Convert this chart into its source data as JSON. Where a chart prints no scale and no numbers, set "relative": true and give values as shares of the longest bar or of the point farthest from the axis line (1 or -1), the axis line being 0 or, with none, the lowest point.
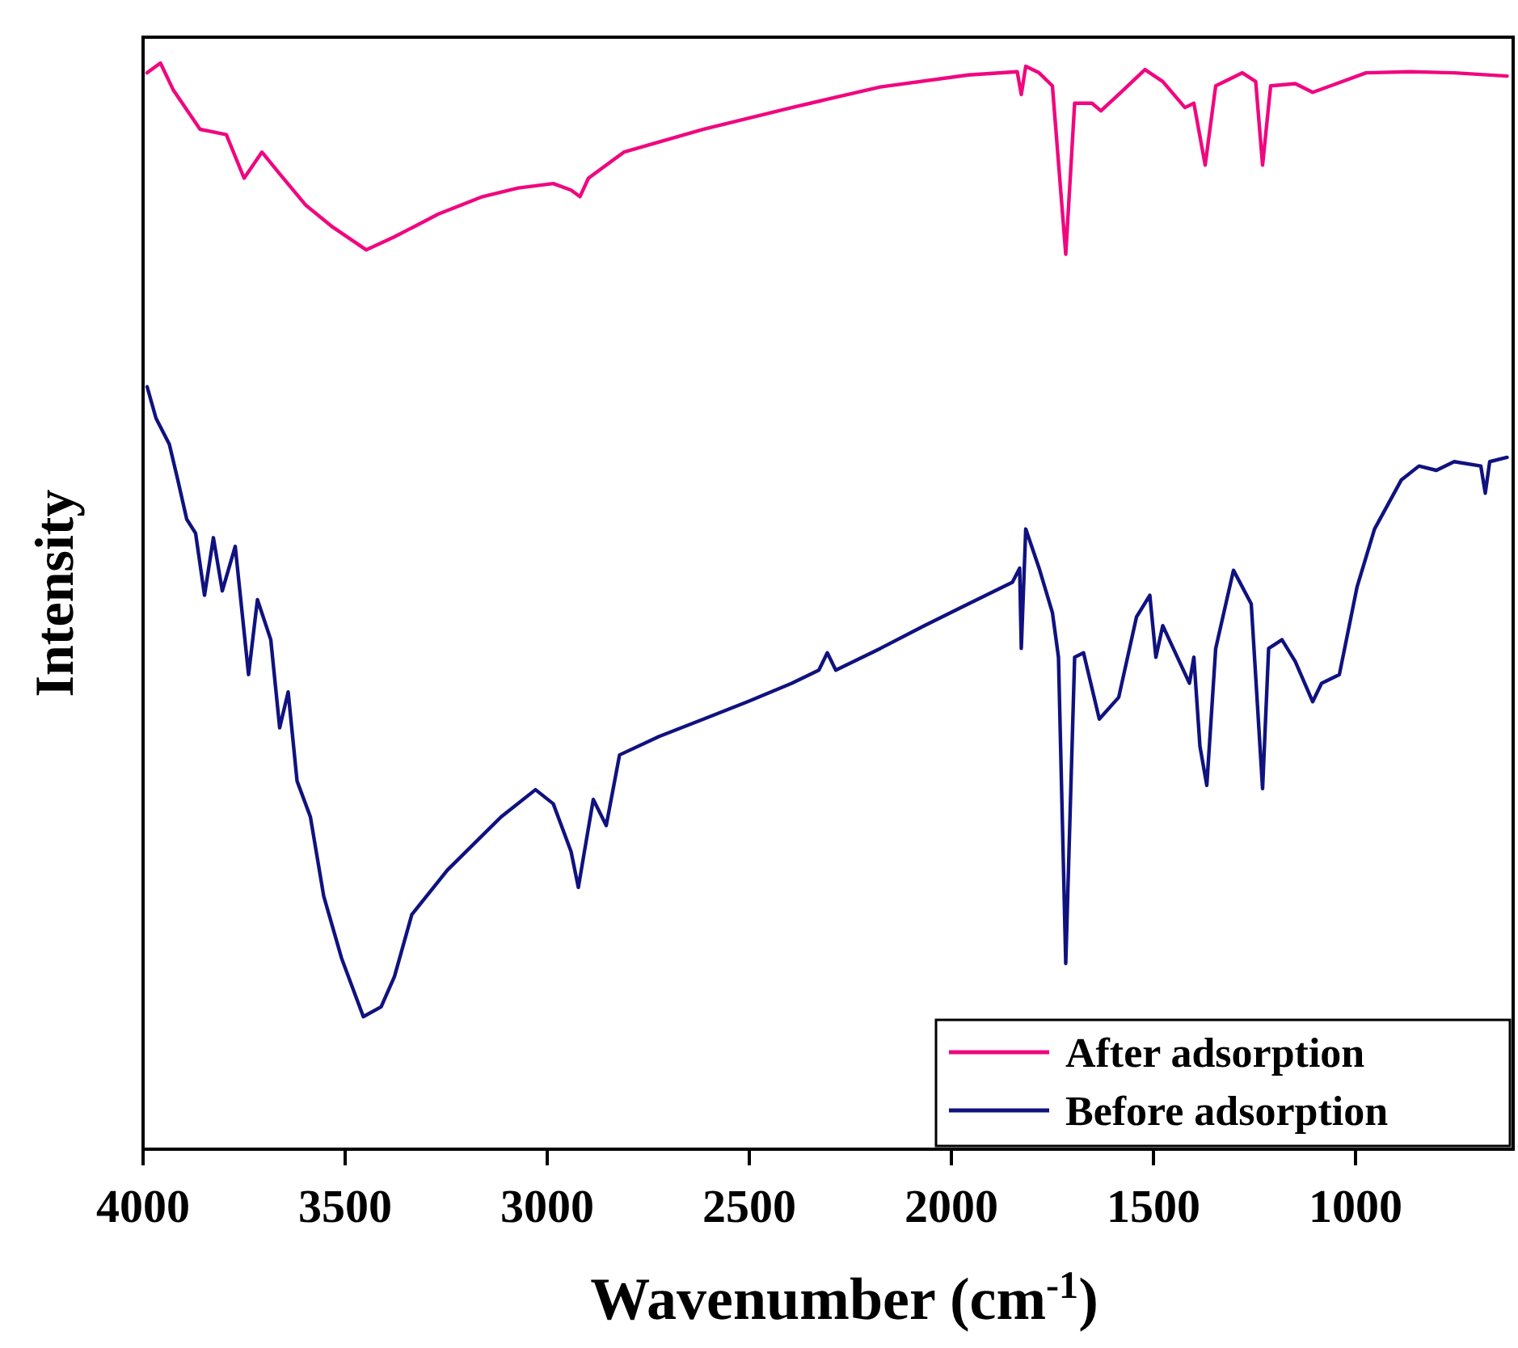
{
  "chart_data": {
    "type": "line",
    "xlabel": "Wavenumber (cm$^{-1}$)",
    "ylabel": "Intensity",
    "relative": true,
    "xlim": [
      4000,
      610
    ],
    "xticks": [
      4000,
      3500,
      3000,
      2500,
      2000,
      1500,
      1000
    ],
    "grid": false,
    "legend": "bottom right",
    "marker": "none",
    "line_style": "solid",
    "series": [
      {
        "name": "After adsorption",
        "color": "#f0077f",
        "x": [
          3990,
          3957,
          3925,
          3859,
          3794,
          3750,
          3706,
          3662,
          3597,
          3531,
          3448,
          3378,
          3269,
          3160,
          3072,
          2985,
          2941,
          2919,
          2898,
          2810,
          2613,
          2395,
          2176,
          1958,
          1837,
          1827,
          1816,
          1783,
          1750,
          1717,
          1695,
          1652,
          1630,
          1586,
          1521,
          1477,
          1422,
          1400,
          1372,
          1346,
          1280,
          1247,
          1230,
          1210,
          1149,
          1106,
          1062,
          974,
          865,
          756,
          625
        ],
        "values": [
          0.991,
          1,
          0.975,
          0.939,
          0.934,
          0.894,
          0.918,
          0.898,
          0.869,
          0.849,
          0.828,
          0.84,
          0.861,
          0.877,
          0.885,
          0.889,
          0.883,
          0.877,
          0.894,
          0.918,
          0.939,
          0.959,
          0.978,
          0.989,
          0.992,
          0.971,
          0.997,
          0.991,
          0.979,
          0.824,
          0.963,
          0.963,
          0.956,
          0.971,
          0.994,
          0.983,
          0.959,
          0.963,
          0.906,
          0.979,
          0.991,
          0.983,
          0.906,
          0.979,
          0.981,
          0.973,
          0.979,
          0.991,
          0.992,
          0.991,
          0.988
        ]
      },
      {
        "name": "Before adsorption",
        "color": "#10127f",
        "x": [
          3990,
          3968,
          3935,
          3914,
          3892,
          3870,
          3848,
          3826,
          3804,
          3772,
          3739,
          3717,
          3684,
          3662,
          3641,
          3619,
          3586,
          3553,
          3509,
          3455,
          3411,
          3378,
          3335,
          3247,
          3114,
          3029,
          2985,
          2941,
          2923,
          2908,
          2886,
          2854,
          2821,
          2723,
          2613,
          2504,
          2395,
          2328,
          2307,
          2286,
          2176,
          2067,
          1958,
          1849,
          1831,
          1827,
          1816,
          1783,
          1750,
          1735,
          1717,
          1695,
          1673,
          1634,
          1586,
          1542,
          1509,
          1494,
          1477,
          1411,
          1400,
          1385,
          1368,
          1346,
          1302,
          1258,
          1230,
          1215,
          1182,
          1149,
          1106,
          1084,
          1040,
          996,
          953,
          887,
          843,
          800,
          756,
          690,
          679,
          668,
          625
        ],
        "values": [
          0.702,
          0.673,
          0.649,
          0.616,
          0.58,
          0.567,
          0.51,
          0.563,
          0.514,
          0.555,
          0.437,
          0.506,
          0.469,
          0.388,
          0.421,
          0.339,
          0.306,
          0.233,
          0.176,
          0.122,
          0.131,
          0.159,
          0.216,
          0.257,
          0.306,
          0.331,
          0.318,
          0.274,
          0.241,
          0.274,
          0.322,
          0.298,
          0.363,
          0.38,
          0.396,
          0.412,
          0.429,
          0.441,
          0.457,
          0.441,
          0.461,
          0.482,
          0.502,
          0.522,
          0.535,
          0.461,
          0.571,
          0.535,
          0.494,
          0.453,
          0.171,
          0.453,
          0.457,
          0.396,
          0.416,
          0.49,
          0.51,
          0.453,
          0.482,
          0.429,
          0.453,
          0.371,
          0.335,
          0.461,
          0.533,
          0.502,
          0.332,
          0.461,
          0.469,
          0.449,
          0.412,
          0.429,
          0.437,
          0.518,
          0.571,
          0.616,
          0.629,
          0.625,
          0.633,
          0.629,
          0.604,
          0.633,
          0.637
        ]
      }
    ]
  }
}
